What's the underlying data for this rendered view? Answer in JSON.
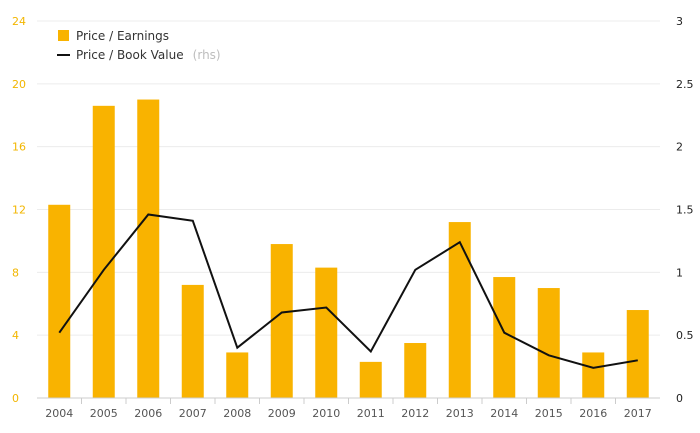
{
  "chart_data": {
    "type": "bar+line",
    "categories": [
      "2004",
      "2005",
      "2006",
      "2007",
      "2008",
      "2009",
      "2010",
      "2011",
      "2012",
      "2013",
      "2014",
      "2015",
      "2016",
      "2017"
    ],
    "series": [
      {
        "name": "Price / Earnings",
        "type": "bar",
        "axis": "left",
        "color": "#F9B300",
        "values": [
          12.3,
          18.6,
          19.0,
          7.2,
          2.9,
          9.8,
          8.3,
          2.3,
          3.5,
          11.2,
          7.7,
          7.0,
          2.9,
          5.6
        ]
      },
      {
        "name": "Price / Book Value",
        "name_suffix": "(rhs)",
        "type": "line",
        "axis": "right",
        "color": "#111111",
        "values": [
          0.52,
          1.02,
          1.46,
          1.41,
          0.4,
          0.68,
          0.72,
          0.37,
          1.02,
          1.24,
          0.52,
          0.34,
          0.24,
          0.3
        ]
      }
    ],
    "y_left": {
      "min": 0,
      "max": 24,
      "ticks": [
        "0",
        "4",
        "8",
        "12",
        "16",
        "20",
        "24"
      ],
      "color": "#F2B600"
    },
    "y_right": {
      "min": 0,
      "max": 3,
      "ticks": [
        "0",
        "0.5",
        "1",
        "1.5",
        "2",
        "2.5",
        "3"
      ]
    },
    "grid": true,
    "legend": "top-left"
  }
}
